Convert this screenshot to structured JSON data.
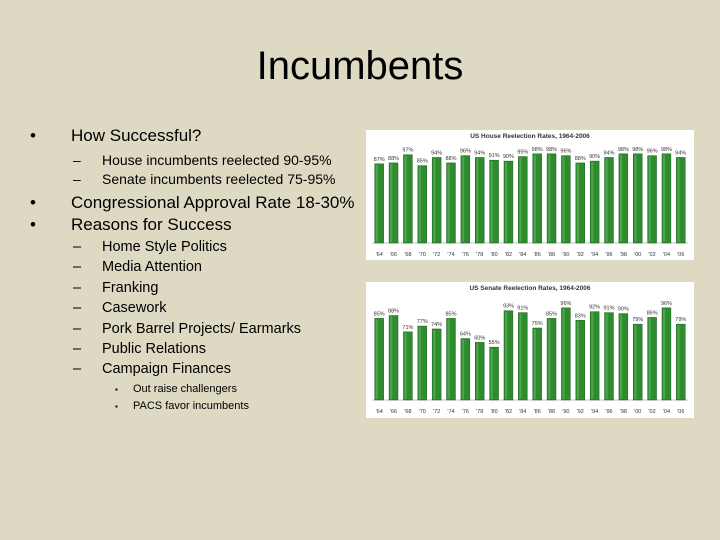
{
  "slide": {
    "title": "Incumbents",
    "bullets": {
      "b1": "How Successful?",
      "b1_sub": [
        "House incumbents reelected 90-95%",
        "Senate incumbents reelected 75-95%"
      ],
      "b2": "Congressional Approval Rate 18-30%",
      "b3": "Reasons for Success",
      "b3_sub": [
        "Home Style Politics",
        "Media Attention",
        "Franking",
        "Casework",
        "Pork Barrel Projects/ Earmarks",
        "Public Relations",
        "Campaign Finances"
      ],
      "b3_subsub": [
        "Out raise challengers",
        "PACS favor incumbents"
      ],
      "bullet_glyph": "•",
      "dash_glyph": "–",
      "small_bullet_glyph": "▪"
    }
  },
  "chart_data": [
    {
      "type": "bar",
      "title": "US House Reelection Rates, 1964-2006",
      "categories": [
        "'64",
        "'66",
        "'68",
        "'70",
        "'72",
        "'74",
        "'76",
        "'78",
        "'80",
        "'82",
        "'84",
        "'86",
        "'88",
        "'90",
        "'92",
        "'94",
        "'96",
        "'98",
        "'00",
        "'02",
        "'04",
        "'06"
      ],
      "tick_labels": [
        "'64",
        "'66",
        "'68",
        "'70",
        "'72",
        "'74",
        "'76",
        "'78",
        "'80",
        "'82",
        "'84",
        "'86",
        "'88",
        "'90",
        "'92",
        "'94",
        "'96",
        "'98",
        "'00",
        "'02",
        "'04",
        "'06"
      ],
      "values": [
        87,
        88,
        97,
        85,
        94,
        88,
        96,
        94,
        91,
        90,
        95,
        98,
        98,
        96,
        88,
        90,
        94,
        98,
        98,
        96,
        98,
        94
      ],
      "value_labels": [
        "87%",
        "88%",
        "97%",
        "85%",
        "94%",
        "88%",
        "96%",
        "94%",
        "91%",
        "90%",
        "95%",
        "98%",
        "98%",
        "96%",
        "88%",
        "90%",
        "94%",
        "98%",
        "98%",
        "96%",
        "98%",
        "94%"
      ],
      "ylim": [
        0,
        100
      ],
      "xlabel": "",
      "ylabel": "",
      "grid": false,
      "colors": {
        "bar": "#2e8b2e",
        "bar_edge": "#1d5e1d",
        "background": "#ffffff",
        "text": "#333333"
      }
    },
    {
      "type": "bar",
      "title": "US Senate Reelection Rates, 1964-2006",
      "categories": [
        "'64",
        "'66",
        "'68",
        "'70",
        "'72",
        "'74",
        "'76",
        "'78",
        "'80",
        "'82",
        "'84",
        "'86",
        "'88",
        "'90",
        "'92",
        "'94",
        "'96",
        "'98",
        "'00",
        "'02",
        "'04",
        "'06"
      ],
      "tick_labels": [
        "'64",
        "'66",
        "'68",
        "'70",
        "'72",
        "'74",
        "'76",
        "'78",
        "'80",
        "'82",
        "'84",
        "'86",
        "'88",
        "'90",
        "'92",
        "'94",
        "'96",
        "'98",
        "'00",
        "'02",
        "'04",
        "'06"
      ],
      "values": [
        85,
        88,
        71,
        77,
        74,
        85,
        64,
        60,
        55,
        93,
        91,
        75,
        85,
        96,
        83,
        92,
        91,
        90,
        79,
        86,
        96,
        79
      ],
      "value_labels": [
        "85%",
        "88%",
        "71%",
        "77%",
        "74%",
        "85%",
        "64%",
        "60%",
        "55%",
        "93%",
        "91%",
        "75%",
        "85%",
        "96%",
        "83%",
        "92%",
        "91%",
        "90%",
        "79%",
        "86%",
        "96%",
        "79%"
      ],
      "ylim": [
        0,
        100
      ],
      "xlabel": "",
      "ylabel": "",
      "grid": false,
      "colors": {
        "bar": "#2e8b2e",
        "bar_edge": "#1d5e1d",
        "background": "#ffffff",
        "text": "#333333"
      }
    }
  ]
}
